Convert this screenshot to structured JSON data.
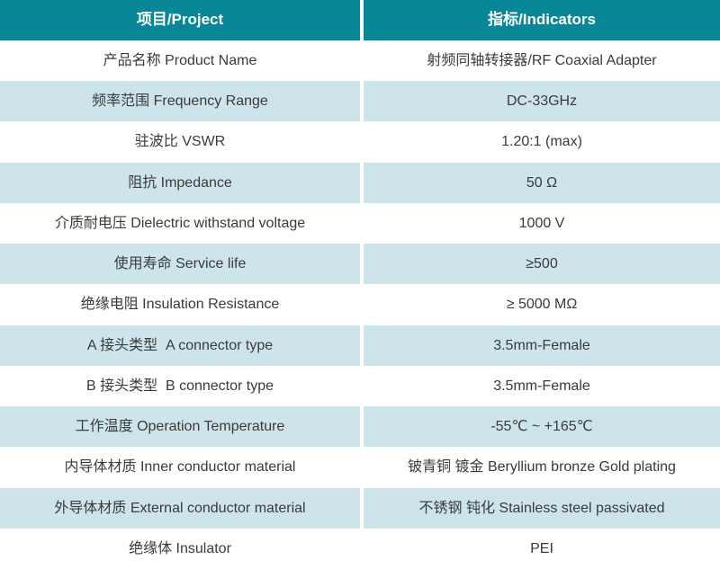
{
  "colors": {
    "header_bg": "#088896",
    "header_text": "#ffffff",
    "tint_bg": "#cde5ea",
    "row_bg": "#ffffff",
    "gap_bg": "#ffffff",
    "text": "#3a3a3a"
  },
  "table": {
    "header": {
      "project": "项目/Project",
      "indicators": "指标/Indicators"
    },
    "rows": [
      {
        "project": "产品名称 Product Name",
        "indicator": "射频同轴转接器/RF Coaxial Adapter"
      },
      {
        "project": "频率范围 Frequency Range",
        "indicator": "DC-33GHz"
      },
      {
        "project": "驻波比 VSWR",
        "indicator": "1.20:1 (max)"
      },
      {
        "project": "阻抗 Impedance",
        "indicator": "50 Ω"
      },
      {
        "project": "介质耐电压 Dielectric withstand voltage",
        "indicator": "1000 V"
      },
      {
        "project": "使用寿命 Service life",
        "indicator": "≥500"
      },
      {
        "project": "绝缘电阻 Insulation Resistance",
        "indicator": "≥ 5000 MΩ"
      },
      {
        "project": "A 接头类型  A connector type",
        "indicator": "3.5mm-Female"
      },
      {
        "project": "B 接头类型  B connector type",
        "indicator": "3.5mm-Female"
      },
      {
        "project": "工作温度 Operation Temperature",
        "indicator": "-55℃ ~ +165℃"
      },
      {
        "project": "内导体材质 Inner conductor material",
        "indicator": "铍青铜 镀金 Beryllium bronze Gold plating"
      },
      {
        "project": "外导体材质 External conductor material",
        "indicator": "不锈钢 钝化 Stainless steel passivated"
      },
      {
        "project": "绝缘体 Insulator",
        "indicator": "PEI"
      }
    ]
  }
}
